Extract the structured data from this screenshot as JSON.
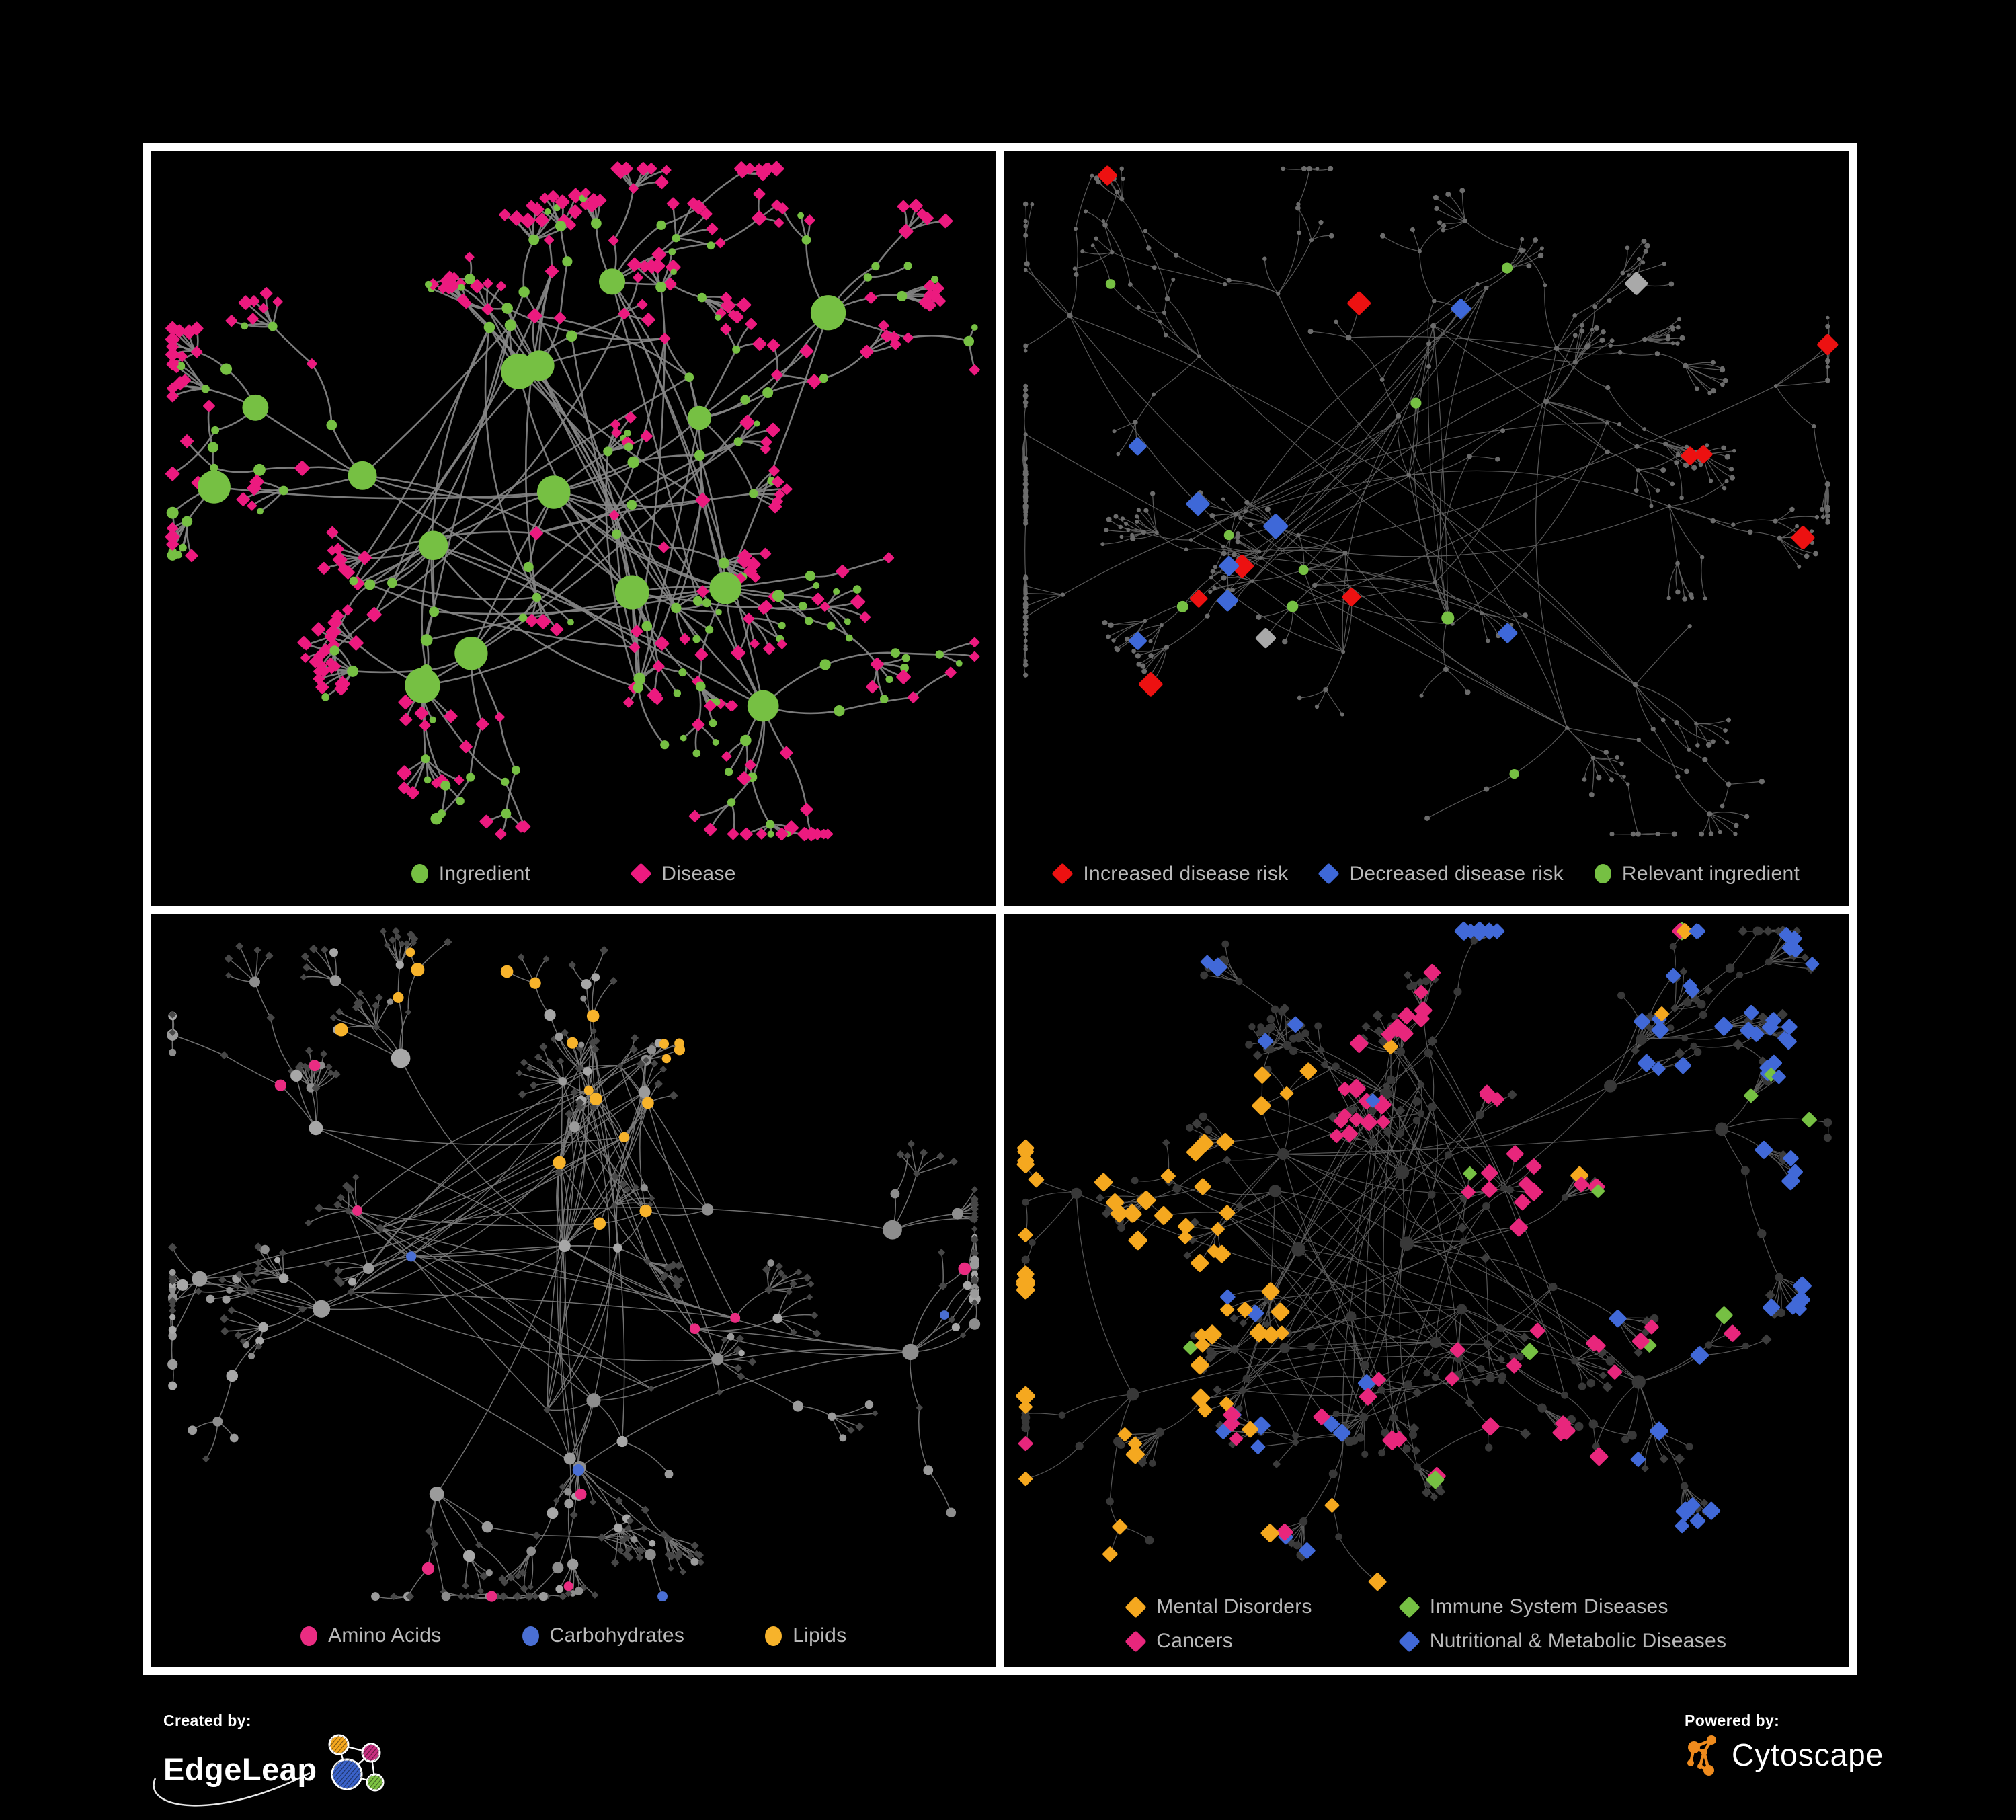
{
  "page": {
    "background": "#000000",
    "frame_color": "#ffffff"
  },
  "panels": [
    {
      "id": "ingredient-disease",
      "legend": [
        {
          "label": "Ingredient",
          "shape": "circle",
          "color": "#76c043"
        },
        {
          "label": "Disease",
          "shape": "diamond",
          "color": "#ec1a7f"
        }
      ],
      "gen": {
        "seed": 90137,
        "hubs": 15,
        "cross": 55,
        "leafMax": 8
      },
      "style": {
        "edge": "#858585",
        "edgeW": 2.6,
        "circle": "#76c043",
        "diamond": "#ec1a7f"
      }
    },
    {
      "id": "disease-risk",
      "legend": [
        {
          "label": "Increased disease risk",
          "shape": "diamond",
          "color": "#ed1111"
        },
        {
          "label": "Decreased disease risk",
          "shape": "diamond",
          "color": "#3e68d8"
        },
        {
          "label": "Relevant ingredient",
          "shape": "circle",
          "color": "#76c043"
        }
      ],
      "gen": {
        "seed": 51853,
        "hubs": 16,
        "cross": 45,
        "leafMax": 8
      },
      "style": {
        "edge": "#616161",
        "edgeW": 1.2,
        "base": "#6c6c6c",
        "red": "#ed1111",
        "blue": "#3e68d8",
        "silver": "#a9a9a9",
        "green": "#76c043"
      }
    },
    {
      "id": "ingredient-classes",
      "legend": [
        {
          "label": "Amino Acids",
          "shape": "circle",
          "color": "#ea2c82"
        },
        {
          "label": "Carbohydrates",
          "shape": "circle",
          "color": "#4a6fd4"
        },
        {
          "label": "Lipids",
          "shape": "circle",
          "color": "#f7b32b"
        }
      ],
      "gen": {
        "seed": 77411,
        "hubs": 15,
        "cross": 85,
        "leafMax": 9
      },
      "style": {
        "edge": "#7a7a7a",
        "edgeW": 1.5,
        "circleBase": "#9b9b9b",
        "diamondBase": "#474747",
        "amino": "#ea2c82",
        "carb": "#4a6fd4",
        "lipid": "#f7b32b"
      }
    },
    {
      "id": "disease-classes",
      "legend": [
        {
          "label": "Mental Disorders",
          "shape": "diamond",
          "color": "#f5a81f"
        },
        {
          "label": "Immune System Diseases",
          "shape": "diamond",
          "color": "#76c043"
        },
        {
          "label": "Cancers",
          "shape": "diamond",
          "color": "#e8267c"
        },
        {
          "label": "Nutritional & Metabolic Diseases",
          "shape": "diamond",
          "color": "#4169d8"
        }
      ],
      "gen": {
        "seed": 64289,
        "hubs": 17,
        "cross": 75,
        "leafMax": 9
      },
      "style": {
        "edge": "#5d5d5d",
        "edgeW": 1.2,
        "base": "#3c3c3c",
        "circleBase": "#383838",
        "mental": "#f5a81f",
        "immune": "#76c043",
        "cancer": "#e8267c",
        "metabolic": "#4169d8"
      }
    }
  ],
  "footer": {
    "created_by_label": "Created by:",
    "created_by_name": "EdgeLeap",
    "powered_by_label": "Powered by:",
    "powered_by_name": "Cytoscape",
    "colors": {
      "edgeleap_orange": "#f5a81f",
      "edgeleap_magenta": "#c72e7f",
      "edgeleap_blue": "#3a62c9",
      "edgeleap_green": "#7dc242",
      "cytoscape_orange": "#ef8b1d",
      "swoosh": "#e8e8e8"
    }
  }
}
